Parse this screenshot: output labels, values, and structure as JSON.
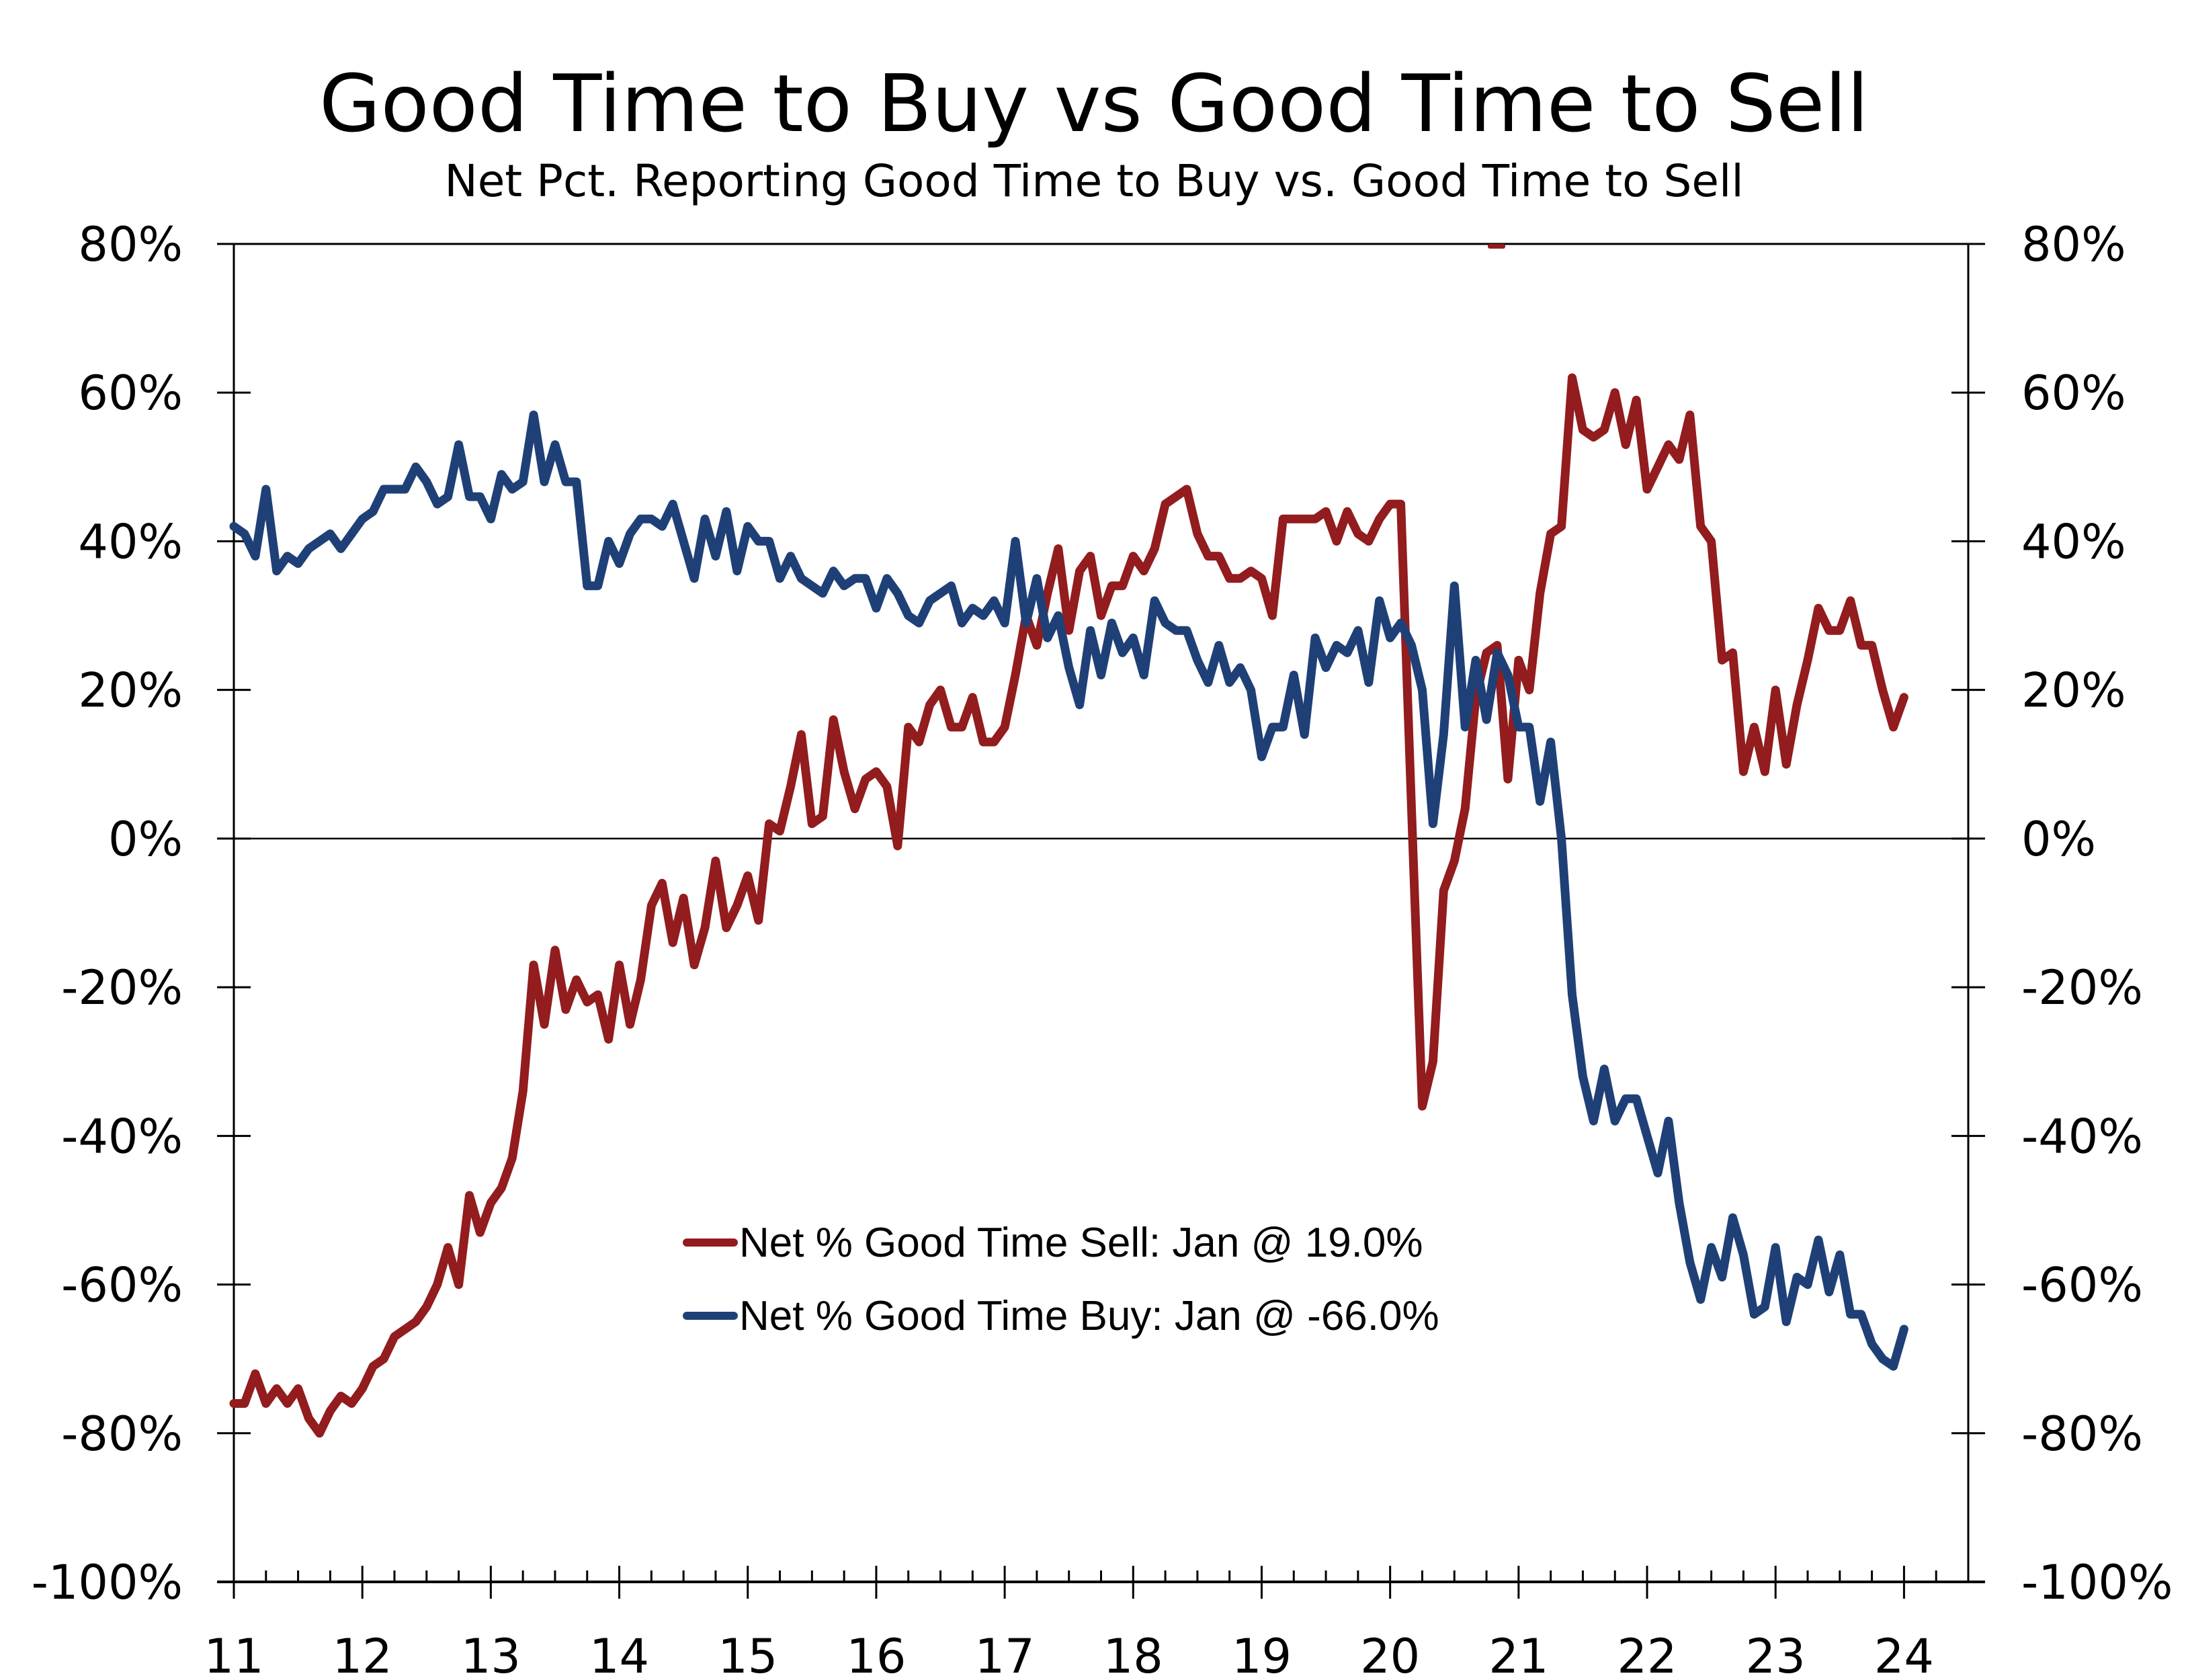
{
  "chart_data": {
    "type": "line",
    "title": "Good Time to Buy vs Good Time to Sell",
    "subtitle": "Net Pct. Reporting Good Time to Buy vs. Good Time to Sell",
    "xlabel": "",
    "ylabel": "",
    "frequency": "monthly",
    "x_start": "Jan 2011",
    "x_end": "Jan 2024",
    "x_tick_labels": [
      "11",
      "12",
      "13",
      "14",
      "15",
      "16",
      "17",
      "18",
      "19",
      "20",
      "21",
      "22",
      "23",
      "24"
    ],
    "y_tick_labels": [
      "80%",
      "60%",
      "40%",
      "20%",
      "0%",
      "-20%",
      "-40%",
      "-60%",
      "-80%",
      "-100%"
    ],
    "ylim": [
      -100,
      80
    ],
    "y_ticks": [
      80,
      60,
      40,
      20,
      0,
      -20,
      -40,
      -60,
      -80,
      -100
    ],
    "xlim": [
      2011.0,
      2024.5
    ],
    "grid": false,
    "zero_line": true,
    "secondary_y_axis": true,
    "legend_position": "center-bottom",
    "series": [
      {
        "name": "Net % Good Time Sell: Jan @ 19.0%",
        "color": "#921C1E",
        "values": [
          -76,
          -76,
          -72,
          -76,
          -74,
          -76,
          -74,
          -78,
          -80,
          -77,
          -75,
          -76,
          -74,
          -71,
          -70,
          -67,
          -66,
          -65,
          -63,
          -60,
          -55,
          -60,
          -48,
          -53,
          -49,
          -47,
          -43,
          -34,
          -17,
          -25,
          -15,
          -23,
          -19,
          -22,
          -21,
          -27,
          -17,
          -25,
          -19,
          -9,
          -6,
          -14,
          -8,
          -17,
          -12,
          -3,
          -12,
          -9,
          -5,
          -11,
          2,
          1,
          7,
          14,
          2,
          3,
          16,
          9,
          4,
          8,
          9,
          7,
          -1,
          15,
          13,
          18,
          20,
          15,
          15,
          19,
          13,
          13,
          15,
          22,
          30,
          26,
          33,
          39,
          28,
          36,
          38,
          30,
          34,
          34,
          38,
          36,
          39,
          45,
          46,
          47,
          41,
          38,
          38,
          35,
          35,
          36,
          35,
          30,
          43,
          43,
          43,
          43,
          44,
          40,
          44,
          41,
          40,
          43,
          45,
          45,
          4,
          -36,
          -30,
          -7,
          -3,
          4,
          19,
          25,
          26,
          8,
          24,
          20,
          33,
          41,
          42,
          62,
          55,
          54,
          55,
          60,
          53,
          59,
          47,
          50,
          53,
          51,
          57,
          42,
          40,
          24,
          25,
          9,
          15,
          9,
          20,
          10,
          18,
          24,
          31,
          28,
          28,
          32,
          26,
          26,
          20,
          15,
          19
        ]
      },
      {
        "name": "Net % Good Time Buy: Jan @ -66.0%",
        "color": "#1F4077",
        "values": [
          42,
          41,
          38,
          47,
          36,
          38,
          37,
          39,
          40,
          41,
          39,
          41,
          43,
          44,
          47,
          47,
          47,
          50,
          48,
          45,
          46,
          53,
          46,
          46,
          43,
          49,
          47,
          48,
          57,
          48,
          53,
          48,
          48,
          34,
          34,
          40,
          37,
          41,
          43,
          43,
          42,
          45,
          40,
          35,
          43,
          38,
          44,
          36,
          42,
          40,
          40,
          35,
          38,
          35,
          34,
          33,
          36,
          34,
          35,
          35,
          31,
          35,
          33,
          30,
          29,
          32,
          33,
          34,
          29,
          31,
          30,
          32,
          29,
          40,
          29,
          35,
          27,
          30,
          23,
          18,
          28,
          22,
          29,
          25,
          27,
          22,
          32,
          29,
          28,
          28,
          24,
          21,
          26,
          21,
          23,
          20,
          11,
          15,
          15,
          22,
          14,
          27,
          23,
          26,
          25,
          28,
          21,
          32,
          27,
          29,
          26,
          20,
          2,
          14,
          34,
          15,
          24,
          16,
          25,
          22,
          15,
          15,
          5,
          13,
          0,
          -21,
          -32,
          -38,
          -31,
          -38,
          -35,
          -35,
          -40,
          -45,
          -38,
          -49,
          -57,
          -62,
          -55,
          -59,
          -51,
          -56,
          -64,
          -63,
          -55,
          -65,
          -59,
          -60,
          -54,
          -61,
          -56,
          -64,
          -64,
          -68,
          -70,
          -71,
          -66
        ]
      }
    ],
    "latest": {
      "sell": {
        "month": "Jan",
        "value": "19.0%"
      },
      "buy": {
        "month": "Jan",
        "value": "-66.0%"
      }
    }
  }
}
